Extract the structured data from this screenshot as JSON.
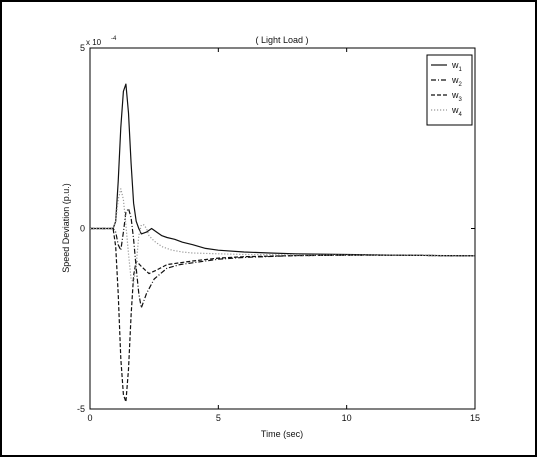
{
  "chart_data": {
    "type": "line",
    "title": "( Light Load )",
    "xlabel": "Time (sec)",
    "ylabel": "Speed Deviation (p.u.)",
    "y_multiplier": "x 10",
    "y_exponent": "-4",
    "xlim": [
      0,
      15
    ],
    "ylim": [
      -5,
      5
    ],
    "x_ticks": [
      "0",
      "5",
      "10",
      "15"
    ],
    "y_ticks": [
      "-5",
      "0",
      "5"
    ],
    "grid": false,
    "legend_position": "top-right",
    "series": [
      {
        "name": "w",
        "subscript": "1",
        "style": "solid",
        "color": "#111111",
        "x": [
          0,
          0.9,
          1.0,
          1.1,
          1.2,
          1.3,
          1.4,
          1.5,
          1.6,
          1.7,
          1.8,
          1.9,
          2.0,
          2.2,
          2.4,
          2.6,
          2.8,
          3.0,
          3.3,
          3.6,
          4.0,
          4.5,
          5.0,
          6.0,
          7.0,
          8.0,
          10.0,
          12.0,
          15.0
        ],
        "y": [
          0,
          0,
          0.2,
          1.3,
          2.8,
          3.8,
          4.0,
          3.2,
          1.8,
          0.7,
          0.2,
          0.0,
          -0.15,
          -0.1,
          0.0,
          -0.1,
          -0.2,
          -0.25,
          -0.3,
          -0.38,
          -0.45,
          -0.55,
          -0.6,
          -0.65,
          -0.68,
          -0.7,
          -0.72,
          -0.74,
          -0.76
        ]
      },
      {
        "name": "w",
        "subscript": "2",
        "style": "dashdot",
        "color": "#111111",
        "x": [
          0,
          0.9,
          1.0,
          1.1,
          1.2,
          1.3,
          1.4,
          1.5,
          1.6,
          1.7,
          1.8,
          1.9,
          2.0,
          2.2,
          2.5,
          3.0,
          3.5,
          4.0,
          5.0,
          6.0,
          8.0,
          10.0,
          12.0,
          15.0
        ],
        "y": [
          0,
          0,
          -0.1,
          -0.45,
          -0.6,
          -0.1,
          0.45,
          0.55,
          0.3,
          -0.3,
          -1.1,
          -1.8,
          -2.2,
          -1.8,
          -1.4,
          -1.1,
          -1.0,
          -0.95,
          -0.85,
          -0.8,
          -0.75,
          -0.74,
          -0.74,
          -0.76
        ]
      },
      {
        "name": "w",
        "subscript": "3",
        "style": "dashed",
        "color": "#111111",
        "x": [
          0,
          0.9,
          1.0,
          1.1,
          1.2,
          1.3,
          1.4,
          1.5,
          1.6,
          1.7,
          1.8,
          2.0,
          2.3,
          2.6,
          3.0,
          3.5,
          4.0,
          5.0,
          6.0,
          8.0,
          10.0,
          12.0,
          15.0
        ],
        "y": [
          0,
          0,
          -0.5,
          -1.8,
          -3.6,
          -4.6,
          -4.8,
          -3.9,
          -2.4,
          -1.3,
          -0.9,
          -1.05,
          -1.25,
          -1.15,
          -1.0,
          -0.95,
          -0.9,
          -0.82,
          -0.78,
          -0.75,
          -0.74,
          -0.74,
          -0.76
        ]
      },
      {
        "name": "w",
        "subscript": "4",
        "style": "dotted",
        "color": "#999999",
        "x": [
          0,
          0.9,
          1.0,
          1.1,
          1.2,
          1.3,
          1.4,
          1.5,
          1.6,
          1.7,
          1.8,
          1.9,
          2.0,
          2.1,
          2.2,
          2.3,
          2.5,
          2.8,
          3.2,
          3.6,
          4.0,
          5.0,
          6.0,
          8.0,
          10.0,
          12.0,
          15.0
        ],
        "y": [
          0,
          0,
          0.2,
          0.8,
          1.1,
          0.8,
          0.1,
          -0.7,
          -1.4,
          -1.5,
          -1.0,
          -0.2,
          0.1,
          0.1,
          0.0,
          -0.2,
          -0.35,
          -0.5,
          -0.6,
          -0.65,
          -0.68,
          -0.7,
          -0.72,
          -0.73,
          -0.74,
          -0.74,
          -0.76
        ]
      }
    ]
  }
}
